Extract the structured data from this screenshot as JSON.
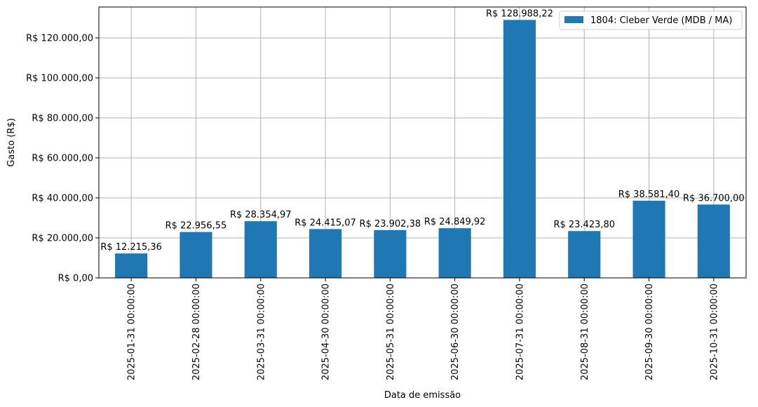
{
  "chart_data": {
    "type": "bar",
    "categories": [
      "2025-01-31 00:00:00",
      "2025-02-28 00:00:00",
      "2025-03-31 00:00:00",
      "2025-04-30 00:00:00",
      "2025-05-31 00:00:00",
      "2025-06-30 00:00:00",
      "2025-07-31 00:00:00",
      "2025-08-31 00:00:00",
      "2025-09-30 00:00:00",
      "2025-10-31 00:00:00"
    ],
    "series": [
      {
        "name": "1804: Cleber Verde (MDB / MA)",
        "color": "#1f77b4",
        "values": [
          12215.36,
          22956.55,
          28354.97,
          24415.07,
          23902.38,
          24849.92,
          128988.22,
          23423.8,
          38581.4,
          36700.0
        ],
        "value_labels": [
          "R$ 12.215,36",
          "R$ 22.956,55",
          "R$ 28.354,97",
          "R$ 24.415,07",
          "R$ 23.902,38",
          "R$ 24.849,92",
          "R$ 128.988,22",
          "R$ 23.423,80",
          "R$ 38.581,40",
          "R$ 36.700,00"
        ]
      }
    ],
    "xlabel": "Data de emissão",
    "ylabel": "Gasto (R$)",
    "ylim": [
      0,
      135437.63
    ],
    "y_ticks": [
      0,
      20000,
      40000,
      60000,
      80000,
      100000,
      120000
    ],
    "y_tick_labels": [
      "R$ 0,00",
      "R$ 20.000,00",
      "R$ 40.000,00",
      "R$ 60.000,00",
      "R$ 80.000,00",
      "R$ 100.000,00",
      "R$ 120.000,00"
    ],
    "grid": true,
    "legend_position": "top-right"
  }
}
